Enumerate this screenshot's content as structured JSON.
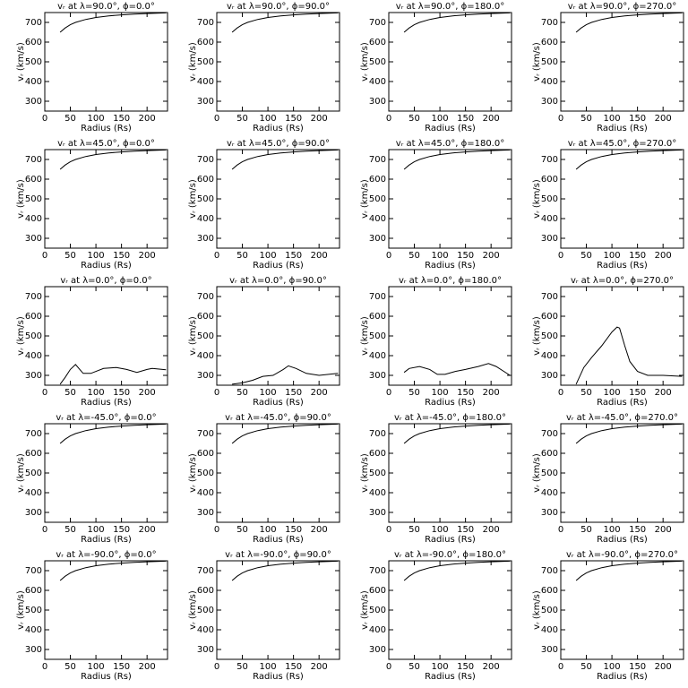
{
  "chart_data": [
    {
      "type": "line",
      "title": "vᵣ at λ=90.0°, ϕ=0.0°",
      "x_label": "Radius (Rs)",
      "y_label": "vᵣ (km/s)",
      "x": [
        30,
        40,
        50,
        60,
        80,
        100,
        125,
        150,
        175,
        200,
        237
      ],
      "values": [
        650,
        672,
        688,
        700,
        715,
        725,
        733,
        738,
        742,
        745,
        748
      ],
      "xlim": [
        0,
        240
      ],
      "ylim": [
        250,
        750
      ],
      "xticks": [
        0,
        50,
        100,
        150,
        200
      ],
      "yticks": [
        300,
        400,
        500,
        600,
        700
      ]
    },
    {
      "type": "line",
      "title": "vᵣ at λ=90.0°, ϕ=90.0°",
      "x_label": "Radius (Rs)",
      "y_label": "vᵣ (km/s)",
      "x": [
        30,
        40,
        50,
        60,
        80,
        100,
        125,
        150,
        175,
        200,
        237
      ],
      "values": [
        650,
        672,
        688,
        700,
        715,
        725,
        733,
        738,
        742,
        745,
        748
      ],
      "xlim": [
        0,
        240
      ],
      "ylim": [
        250,
        750
      ],
      "xticks": [
        0,
        50,
        100,
        150,
        200
      ],
      "yticks": [
        300,
        400,
        500,
        600,
        700
      ]
    },
    {
      "type": "line",
      "title": "vᵣ at λ=90.0°, ϕ=180.0°",
      "x_label": "Radius (Rs)",
      "y_label": "vᵣ (km/s)",
      "x": [
        30,
        40,
        50,
        60,
        80,
        100,
        125,
        150,
        175,
        200,
        237
      ],
      "values": [
        650,
        672,
        688,
        700,
        715,
        725,
        733,
        738,
        742,
        745,
        748
      ],
      "xlim": [
        0,
        240
      ],
      "ylim": [
        250,
        750
      ],
      "xticks": [
        0,
        50,
        100,
        150,
        200
      ],
      "yticks": [
        300,
        400,
        500,
        600,
        700
      ]
    },
    {
      "type": "line",
      "title": "vᵣ at λ=90.0°, ϕ=270.0°",
      "x_label": "Radius (Rs)",
      "y_label": "vᵣ (km/s)",
      "x": [
        30,
        40,
        50,
        60,
        80,
        100,
        125,
        150,
        175,
        200,
        237
      ],
      "values": [
        650,
        672,
        688,
        700,
        715,
        725,
        733,
        738,
        742,
        745,
        748
      ],
      "xlim": [
        0,
        240
      ],
      "ylim": [
        250,
        750
      ],
      "xticks": [
        0,
        50,
        100,
        150,
        200
      ],
      "yticks": [
        300,
        400,
        500,
        600,
        700
      ]
    },
    {
      "type": "line",
      "title": "vᵣ at λ=45.0°, ϕ=0.0°",
      "x_label": "Radius (Rs)",
      "y_label": "vᵣ (km/s)",
      "x": [
        30,
        40,
        50,
        60,
        80,
        100,
        125,
        150,
        175,
        200,
        237
      ],
      "values": [
        650,
        672,
        688,
        700,
        715,
        725,
        733,
        738,
        742,
        745,
        748
      ],
      "xlim": [
        0,
        240
      ],
      "ylim": [
        250,
        750
      ],
      "xticks": [
        0,
        50,
        100,
        150,
        200
      ],
      "yticks": [
        300,
        400,
        500,
        600,
        700
      ]
    },
    {
      "type": "line",
      "title": "vᵣ at λ=45.0°, ϕ=90.0°",
      "x_label": "Radius (Rs)",
      "y_label": "vᵣ (km/s)",
      "x": [
        30,
        40,
        50,
        60,
        80,
        100,
        125,
        150,
        175,
        200,
        237
      ],
      "values": [
        650,
        672,
        688,
        700,
        715,
        725,
        733,
        738,
        742,
        745,
        748
      ],
      "xlim": [
        0,
        240
      ],
      "ylim": [
        250,
        750
      ],
      "xticks": [
        0,
        50,
        100,
        150,
        200
      ],
      "yticks": [
        300,
        400,
        500,
        600,
        700
      ]
    },
    {
      "type": "line",
      "title": "vᵣ at λ=45.0°, ϕ=180.0°",
      "x_label": "Radius (Rs)",
      "y_label": "vᵣ (km/s)",
      "x": [
        30,
        40,
        50,
        60,
        80,
        100,
        125,
        150,
        175,
        200,
        237
      ],
      "values": [
        650,
        672,
        688,
        700,
        715,
        725,
        733,
        738,
        742,
        745,
        748
      ],
      "xlim": [
        0,
        240
      ],
      "ylim": [
        250,
        750
      ],
      "xticks": [
        0,
        50,
        100,
        150,
        200
      ],
      "yticks": [
        300,
        400,
        500,
        600,
        700
      ]
    },
    {
      "type": "line",
      "title": "vᵣ at λ=45.0°, ϕ=270.0°",
      "x_label": "Radius (Rs)",
      "y_label": "vᵣ (km/s)",
      "x": [
        30,
        40,
        50,
        60,
        80,
        100,
        125,
        150,
        175,
        200,
        237
      ],
      "values": [
        650,
        672,
        688,
        700,
        715,
        725,
        733,
        738,
        742,
        745,
        748
      ],
      "xlim": [
        0,
        240
      ],
      "ylim": [
        250,
        750
      ],
      "xticks": [
        0,
        50,
        100,
        150,
        200
      ],
      "yticks": [
        300,
        400,
        500,
        600,
        700
      ]
    },
    {
      "type": "line",
      "title": "vᵣ at λ=0.0°, ϕ=0.0°",
      "x_label": "Radius (Rs)",
      "y_label": "vᵣ (km/s)",
      "x": [
        30,
        40,
        50,
        60,
        75,
        90,
        115,
        140,
        160,
        180,
        200,
        210,
        237
      ],
      "values": [
        255,
        290,
        330,
        355,
        310,
        310,
        335,
        340,
        330,
        315,
        330,
        335,
        328
      ],
      "xlim": [
        0,
        240
      ],
      "ylim": [
        250,
        750
      ],
      "xticks": [
        0,
        50,
        100,
        150,
        200
      ],
      "yticks": [
        300,
        400,
        500,
        600,
        700
      ]
    },
    {
      "type": "line",
      "title": "vᵣ at λ=0.0°, ϕ=90.0°",
      "x_label": "Radius (Rs)",
      "y_label": "vᵣ (km/s)",
      "x": [
        30,
        50,
        70,
        90,
        110,
        130,
        140,
        155,
        175,
        200,
        237
      ],
      "values": [
        255,
        262,
        275,
        295,
        300,
        330,
        348,
        335,
        310,
        300,
        310
      ],
      "xlim": [
        0,
        240
      ],
      "ylim": [
        250,
        750
      ],
      "xticks": [
        0,
        50,
        100,
        150,
        200
      ],
      "yticks": [
        300,
        400,
        500,
        600,
        700
      ]
    },
    {
      "type": "line",
      "title": "vᵣ at λ=0.0°, ϕ=180.0°",
      "x_label": "Radius (Rs)",
      "y_label": "vᵣ (km/s)",
      "x": [
        30,
        40,
        60,
        80,
        95,
        110,
        130,
        150,
        175,
        195,
        210,
        237
      ],
      "values": [
        315,
        335,
        345,
        330,
        305,
        305,
        320,
        330,
        345,
        360,
        345,
        300
      ],
      "xlim": [
        0,
        240
      ],
      "ylim": [
        250,
        750
      ],
      "xticks": [
        0,
        50,
        100,
        150,
        200
      ],
      "yticks": [
        300,
        400,
        500,
        600,
        700
      ]
    },
    {
      "type": "line",
      "title": "vᵣ at λ=0.0°, ϕ=270.0°",
      "x_label": "Radius (Rs)",
      "y_label": "vᵣ (km/s)",
      "x": [
        30,
        45,
        60,
        80,
        100,
        110,
        115,
        125,
        135,
        150,
        170,
        200,
        237
      ],
      "values": [
        255,
        340,
        390,
        450,
        520,
        545,
        540,
        450,
        370,
        320,
        300,
        300,
        295
      ],
      "xlim": [
        0,
        240
      ],
      "ylim": [
        250,
        750
      ],
      "xticks": [
        0,
        50,
        100,
        150,
        200
      ],
      "yticks": [
        300,
        400,
        500,
        600,
        700
      ]
    },
    {
      "type": "line",
      "title": "vᵣ at λ=-45.0°, ϕ=0.0°",
      "x_label": "Radius (Rs)",
      "y_label": "vᵣ (km/s)",
      "x": [
        30,
        40,
        50,
        60,
        80,
        100,
        125,
        150,
        175,
        200,
        237
      ],
      "values": [
        650,
        672,
        688,
        700,
        715,
        725,
        733,
        738,
        742,
        745,
        748
      ],
      "xlim": [
        0,
        240
      ],
      "ylim": [
        250,
        750
      ],
      "xticks": [
        0,
        50,
        100,
        150,
        200
      ],
      "yticks": [
        300,
        400,
        500,
        600,
        700
      ]
    },
    {
      "type": "line",
      "title": "vᵣ at λ=-45.0°, ϕ=90.0°",
      "x_label": "Radius (Rs)",
      "y_label": "vᵣ (km/s)",
      "x": [
        30,
        40,
        50,
        60,
        80,
        100,
        125,
        150,
        175,
        200,
        237
      ],
      "values": [
        650,
        672,
        688,
        700,
        715,
        725,
        733,
        738,
        742,
        745,
        748
      ],
      "xlim": [
        0,
        240
      ],
      "ylim": [
        250,
        750
      ],
      "xticks": [
        0,
        50,
        100,
        150,
        200
      ],
      "yticks": [
        300,
        400,
        500,
        600,
        700
      ]
    },
    {
      "type": "line",
      "title": "vᵣ at λ=-45.0°, ϕ=180.0°",
      "x_label": "Radius (Rs)",
      "y_label": "vᵣ (km/s)",
      "x": [
        30,
        40,
        50,
        60,
        80,
        100,
        125,
        150,
        175,
        200,
        237
      ],
      "values": [
        650,
        672,
        688,
        700,
        715,
        725,
        733,
        738,
        742,
        745,
        748
      ],
      "xlim": [
        0,
        240
      ],
      "ylim": [
        250,
        750
      ],
      "xticks": [
        0,
        50,
        100,
        150,
        200
      ],
      "yticks": [
        300,
        400,
        500,
        600,
        700
      ]
    },
    {
      "type": "line",
      "title": "vᵣ at λ=-45.0°, ϕ=270.0°",
      "x_label": "Radius (Rs)",
      "y_label": "vᵣ (km/s)",
      "x": [
        30,
        40,
        50,
        60,
        80,
        100,
        125,
        150,
        175,
        200,
        237
      ],
      "values": [
        650,
        672,
        688,
        700,
        715,
        725,
        733,
        738,
        742,
        745,
        748
      ],
      "xlim": [
        0,
        240
      ],
      "ylim": [
        250,
        750
      ],
      "xticks": [
        0,
        50,
        100,
        150,
        200
      ],
      "yticks": [
        300,
        400,
        500,
        600,
        700
      ]
    },
    {
      "type": "line",
      "title": "vᵣ at λ=-90.0°, ϕ=0.0°",
      "x_label": "Radius (Rs)",
      "y_label": "vᵣ (km/s)",
      "x": [
        30,
        40,
        50,
        60,
        80,
        100,
        125,
        150,
        175,
        200,
        237
      ],
      "values": [
        650,
        672,
        688,
        700,
        715,
        725,
        733,
        738,
        742,
        745,
        748
      ],
      "xlim": [
        0,
        240
      ],
      "ylim": [
        250,
        750
      ],
      "xticks": [
        0,
        50,
        100,
        150,
        200
      ],
      "yticks": [
        300,
        400,
        500,
        600,
        700
      ]
    },
    {
      "type": "line",
      "title": "vᵣ at λ=-90.0°, ϕ=90.0°",
      "x_label": "Radius (Rs)",
      "y_label": "vᵣ (km/s)",
      "x": [
        30,
        40,
        50,
        60,
        80,
        100,
        125,
        150,
        175,
        200,
        237
      ],
      "values": [
        650,
        672,
        688,
        700,
        715,
        725,
        733,
        738,
        742,
        745,
        748
      ],
      "xlim": [
        0,
        240
      ],
      "ylim": [
        250,
        750
      ],
      "xticks": [
        0,
        50,
        100,
        150,
        200
      ],
      "yticks": [
        300,
        400,
        500,
        600,
        700
      ]
    },
    {
      "type": "line",
      "title": "vᵣ at λ=-90.0°, ϕ=180.0°",
      "x_label": "Radius (Rs)",
      "y_label": "vᵣ (km/s)",
      "x": [
        30,
        40,
        50,
        60,
        80,
        100,
        125,
        150,
        175,
        200,
        237
      ],
      "values": [
        650,
        672,
        688,
        700,
        715,
        725,
        733,
        738,
        742,
        745,
        748
      ],
      "xlim": [
        0,
        240
      ],
      "ylim": [
        250,
        750
      ],
      "xticks": [
        0,
        50,
        100,
        150,
        200
      ],
      "yticks": [
        300,
        400,
        500,
        600,
        700
      ]
    },
    {
      "type": "line",
      "title": "vᵣ at λ=-90.0°, ϕ=270.0°",
      "x_label": "Radius (Rs)",
      "y_label": "vᵣ (km/s)",
      "x": [
        30,
        40,
        50,
        60,
        80,
        100,
        125,
        150,
        175,
        200,
        237
      ],
      "values": [
        650,
        672,
        688,
        700,
        715,
        725,
        733,
        738,
        742,
        745,
        748
      ],
      "xlim": [
        0,
        240
      ],
      "ylim": [
        250,
        750
      ],
      "xticks": [
        0,
        50,
        100,
        150,
        200
      ],
      "yticks": [
        300,
        400,
        500,
        600,
        700
      ]
    }
  ]
}
